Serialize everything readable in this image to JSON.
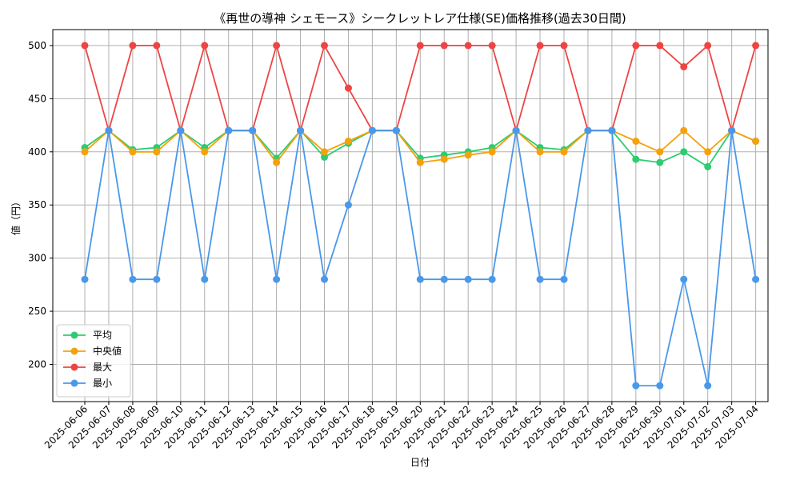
{
  "chart_data": {
    "type": "line",
    "title": "《再世の導神 シェモース》シークレットレア仕様(SE)価格推移(過去30日間)",
    "xlabel": "日付",
    "ylabel": "値（円）",
    "ylim": [
      165,
      515
    ],
    "yticks": [
      200,
      250,
      300,
      350,
      400,
      450,
      500
    ],
    "grid": true,
    "legend_position": "lower-left",
    "categories": [
      "2025-06-06",
      "2025-06-07",
      "2025-06-08",
      "2025-06-09",
      "2025-06-10",
      "2025-06-11",
      "2025-06-12",
      "2025-06-13",
      "2025-06-14",
      "2025-06-15",
      "2025-06-16",
      "2025-06-17",
      "2025-06-18",
      "2025-06-19",
      "2025-06-20",
      "2025-06-21",
      "2025-06-22",
      "2025-06-23",
      "2025-06-24",
      "2025-06-25",
      "2025-06-26",
      "2025-06-27",
      "2025-06-28",
      "2025-06-29",
      "2025-06-30",
      "2025-07-01",
      "2025-07-02",
      "2025-07-03",
      "2025-07-04"
    ],
    "series": [
      {
        "name": "平均",
        "color": "#2ecc71",
        "values": [
          404,
          420,
          402,
          404,
          420,
          404,
          420,
          420,
          394,
          420,
          395,
          408,
          420,
          420,
          394,
          397,
          400,
          404,
          420,
          404,
          402,
          420,
          420,
          393,
          390,
          400,
          386,
          420,
          410
        ]
      },
      {
        "name": "中央値",
        "color": "#f5a10c",
        "values": [
          400,
          420,
          400,
          400,
          420,
          400,
          420,
          420,
          390,
          420,
          400,
          410,
          420,
          420,
          390,
          393,
          397,
          400,
          420,
          400,
          400,
          420,
          420,
          410,
          400,
          420,
          400,
          420,
          410
        ]
      },
      {
        "name": "最大",
        "color": "#ee4444",
        "values": [
          500,
          420,
          500,
          500,
          420,
          500,
          420,
          420,
          500,
          420,
          500,
          460,
          420,
          420,
          500,
          500,
          500,
          500,
          420,
          500,
          500,
          420,
          420,
          500,
          500,
          480,
          500,
          420,
          500
        ]
      },
      {
        "name": "最小",
        "color": "#4a98ea",
        "values": [
          280,
          420,
          280,
          280,
          420,
          280,
          420,
          420,
          280,
          420,
          280,
          350,
          420,
          420,
          280,
          280,
          280,
          280,
          420,
          280,
          280,
          420,
          420,
          180,
          180,
          280,
          180,
          420,
          280
        ]
      }
    ]
  }
}
